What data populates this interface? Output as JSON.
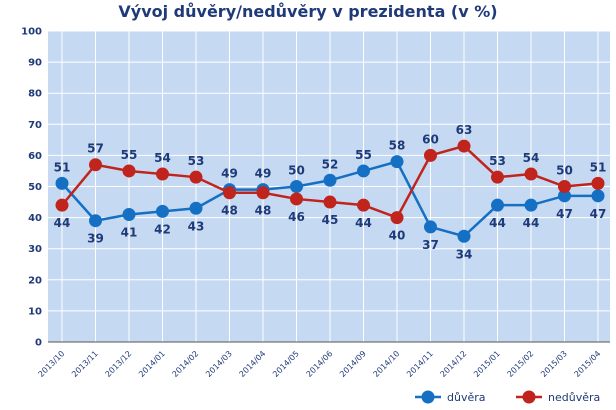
{
  "chart_data": {
    "type": "line",
    "title": "Vývoj důvěry/nedůvěry v prezidenta (v %)",
    "xlabel": "",
    "ylabel": "",
    "ylim": [
      0,
      100
    ],
    "yticks": [
      0,
      10,
      20,
      30,
      40,
      50,
      60,
      70,
      80,
      90,
      100
    ],
    "grid": true,
    "legend": "bottom-right",
    "categories": [
      "2013/10",
      "2013/11",
      "2013/12",
      "2014/01",
      "2014/02",
      "2014/03",
      "2014/04",
      "2014/05",
      "2014/06",
      "2014/09",
      "2014/10",
      "2014/11",
      "2014/12",
      "2015/01",
      "2015/02",
      "2015/03",
      "2015/04"
    ],
    "series": [
      {
        "name": "důvěra",
        "color": "#1570c4",
        "values": [
          51,
          39,
          41,
          42,
          43,
          49,
          49,
          50,
          52,
          55,
          58,
          37,
          34,
          44,
          44,
          47,
          47
        ]
      },
      {
        "name": "nedůvěra",
        "color": "#c0241c",
        "values": [
          44,
          57,
          55,
          54,
          53,
          48,
          48,
          46,
          45,
          44,
          40,
          60,
          63,
          53,
          54,
          50,
          51
        ]
      }
    ],
    "colors": {
      "plot_bg": "#c5daf2",
      "grid": "#ffffff",
      "text": "#1f3a78"
    }
  }
}
